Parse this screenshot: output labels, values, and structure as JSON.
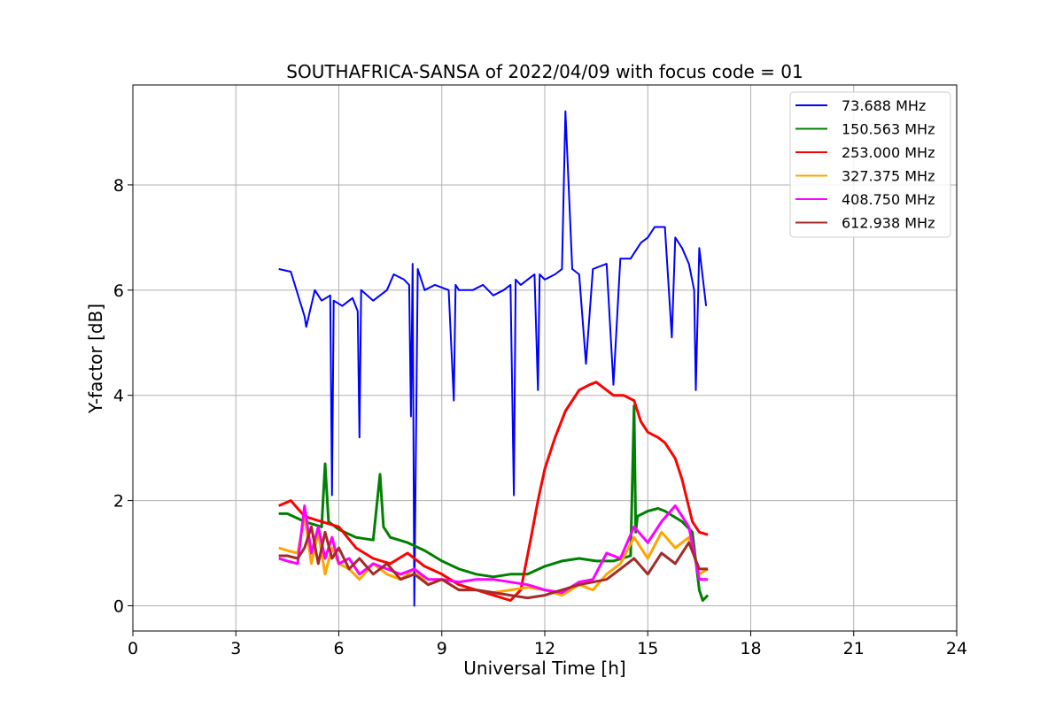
{
  "chart_data": {
    "type": "line",
    "title": "SOUTHAFRICA-SANSA of 2022/04/09 with focus code = 01",
    "xlabel": "Universal Time [h]",
    "ylabel": "Y-factor [dB]",
    "xlim": [
      0,
      24
    ],
    "ylim": [
      -0.48,
      9.9
    ],
    "xticks": [
      0,
      3,
      6,
      9,
      12,
      15,
      18,
      21,
      24
    ],
    "yticks": [
      0,
      2,
      4,
      6,
      8
    ],
    "grid": true,
    "legend_position": "top-right",
    "series": [
      {
        "name": " 73.688 MHz",
        "color": "#0000ff",
        "x": [
          4.25,
          4.6,
          5.0,
          5.05,
          5.3,
          5.5,
          5.75,
          5.8,
          5.85,
          6.1,
          6.4,
          6.55,
          6.6,
          6.65,
          7.0,
          7.4,
          7.6,
          7.9,
          8.05,
          8.1,
          8.15,
          8.2,
          8.3,
          8.5,
          8.8,
          9.2,
          9.35,
          9.4,
          9.5,
          9.9,
          10.2,
          10.5,
          10.8,
          11.0,
          11.1,
          11.15,
          11.3,
          11.5,
          11.7,
          11.8,
          11.85,
          12.0,
          12.3,
          12.5,
          12.6,
          12.8,
          13.0,
          13.2,
          13.4,
          13.8,
          14.0,
          14.2,
          14.5,
          14.8,
          15.0,
          15.2,
          15.5,
          15.7,
          15.8,
          16.0,
          16.2,
          16.35,
          16.4,
          16.5,
          16.7
        ],
        "y": [
          6.4,
          6.35,
          5.5,
          5.3,
          6.0,
          5.8,
          5.9,
          2.1,
          5.8,
          5.7,
          5.85,
          5.6,
          3.2,
          6.0,
          5.8,
          6.0,
          6.3,
          6.2,
          6.1,
          3.6,
          6.5,
          0.0,
          6.4,
          6.0,
          6.1,
          6.0,
          3.9,
          6.1,
          6.0,
          6.0,
          6.1,
          5.9,
          6.0,
          6.1,
          2.1,
          6.2,
          6.1,
          6.2,
          6.3,
          4.1,
          6.3,
          6.2,
          6.3,
          6.4,
          9.4,
          6.4,
          6.3,
          4.6,
          6.4,
          6.5,
          4.2,
          6.6,
          6.6,
          6.9,
          7.0,
          7.2,
          7.2,
          5.1,
          7.0,
          6.8,
          6.5,
          6.0,
          4.1,
          6.8,
          5.7
        ]
      },
      {
        "name": "150.563 MHz",
        "color": "#008000",
        "x": [
          4.25,
          4.5,
          5.0,
          5.5,
          5.6,
          5.7,
          6.0,
          6.5,
          7.0,
          7.2,
          7.3,
          7.5,
          8.0,
          8.5,
          9.0,
          9.5,
          10.0,
          10.5,
          11.0,
          11.5,
          12.0,
          12.5,
          13.0,
          13.5,
          14.0,
          14.5,
          14.6,
          14.65,
          14.7,
          15.0,
          15.3,
          15.5,
          16.0,
          16.3,
          16.5,
          16.6,
          16.75
        ],
        "y": [
          1.75,
          1.75,
          1.6,
          1.5,
          2.7,
          1.6,
          1.45,
          1.3,
          1.25,
          2.5,
          1.5,
          1.3,
          1.2,
          1.05,
          0.85,
          0.7,
          0.6,
          0.55,
          0.6,
          0.6,
          0.75,
          0.85,
          0.9,
          0.85,
          0.85,
          0.95,
          3.8,
          1.4,
          1.7,
          1.8,
          1.85,
          1.8,
          1.6,
          1.4,
          0.3,
          0.1,
          0.2
        ]
      },
      {
        "name": "253.000 MHz",
        "color": "#ff0000",
        "x": [
          4.25,
          4.6,
          5.0,
          5.5,
          6.0,
          6.5,
          7.0,
          7.5,
          8.0,
          8.5,
          9.0,
          9.5,
          10.0,
          10.5,
          11.0,
          11.3,
          11.6,
          11.8,
          12.0,
          12.3,
          12.6,
          13.0,
          13.3,
          13.5,
          13.8,
          14.0,
          14.3,
          14.6,
          14.8,
          15.0,
          15.3,
          15.5,
          15.8,
          16.0,
          16.3,
          16.5,
          16.75
        ],
        "y": [
          1.9,
          2.0,
          1.7,
          1.6,
          1.5,
          1.1,
          0.9,
          0.8,
          1.0,
          0.75,
          0.6,
          0.4,
          0.3,
          0.2,
          0.1,
          0.3,
          1.3,
          2.0,
          2.6,
          3.2,
          3.7,
          4.1,
          4.2,
          4.25,
          4.1,
          4.0,
          4.0,
          3.9,
          3.5,
          3.3,
          3.2,
          3.1,
          2.8,
          2.4,
          1.6,
          1.4,
          1.35
        ]
      },
      {
        "name": "327.375 MHz",
        "color": "#ffa500",
        "x": [
          4.25,
          4.5,
          4.8,
          5.0,
          5.2,
          5.4,
          5.6,
          5.8,
          6.0,
          6.3,
          6.6,
          7.0,
          7.4,
          7.8,
          8.2,
          8.6,
          9.0,
          9.5,
          10.0,
          10.5,
          11.0,
          11.5,
          12.0,
          12.5,
          13.0,
          13.4,
          13.8,
          14.2,
          14.6,
          15.0,
          15.4,
          15.8,
          16.2,
          16.5,
          16.75
        ],
        "y": [
          1.1,
          1.05,
          1.0,
          1.7,
          0.8,
          1.4,
          0.6,
          1.1,
          0.8,
          0.7,
          0.5,
          0.8,
          0.6,
          0.5,
          0.7,
          0.4,
          0.5,
          0.3,
          0.3,
          0.25,
          0.3,
          0.35,
          0.3,
          0.2,
          0.4,
          0.3,
          0.6,
          0.8,
          1.3,
          0.9,
          1.4,
          1.1,
          1.3,
          0.6,
          0.7
        ]
      },
      {
        "name": "408.750 MHz",
        "color": "#ff00ff",
        "x": [
          4.25,
          4.5,
          4.8,
          5.0,
          5.2,
          5.4,
          5.6,
          5.8,
          6.0,
          6.3,
          6.6,
          7.0,
          7.4,
          7.8,
          8.2,
          8.6,
          9.0,
          9.5,
          10.0,
          10.5,
          11.0,
          11.5,
          12.0,
          12.5,
          13.0,
          13.4,
          13.8,
          14.2,
          14.6,
          15.0,
          15.4,
          15.8,
          16.2,
          16.5,
          16.75
        ],
        "y": [
          0.9,
          0.85,
          0.8,
          1.9,
          1.0,
          1.5,
          0.9,
          1.3,
          0.8,
          0.9,
          0.6,
          0.8,
          0.7,
          0.6,
          0.7,
          0.5,
          0.5,
          0.45,
          0.5,
          0.5,
          0.45,
          0.4,
          0.3,
          0.25,
          0.45,
          0.5,
          1.0,
          0.9,
          1.5,
          1.2,
          1.6,
          1.9,
          1.5,
          0.5,
          0.5
        ]
      },
      {
        "name": "612.938 MHz",
        "color": "#a52a2a",
        "x": [
          4.25,
          4.5,
          4.8,
          5.0,
          5.2,
          5.4,
          5.6,
          5.8,
          6.0,
          6.3,
          6.6,
          7.0,
          7.4,
          7.8,
          8.2,
          8.6,
          9.0,
          9.5,
          10.0,
          10.5,
          11.0,
          11.5,
          12.0,
          12.5,
          13.0,
          13.4,
          13.8,
          14.2,
          14.6,
          15.0,
          15.4,
          15.8,
          16.2,
          16.5,
          16.75
        ],
        "y": [
          0.95,
          0.95,
          0.9,
          1.1,
          1.5,
          0.8,
          1.4,
          0.9,
          1.1,
          0.7,
          0.9,
          0.6,
          0.8,
          0.5,
          0.6,
          0.4,
          0.5,
          0.3,
          0.3,
          0.25,
          0.2,
          0.15,
          0.2,
          0.3,
          0.4,
          0.45,
          0.5,
          0.7,
          0.9,
          0.6,
          1.0,
          0.8,
          1.2,
          0.7,
          0.7
        ]
      }
    ]
  }
}
